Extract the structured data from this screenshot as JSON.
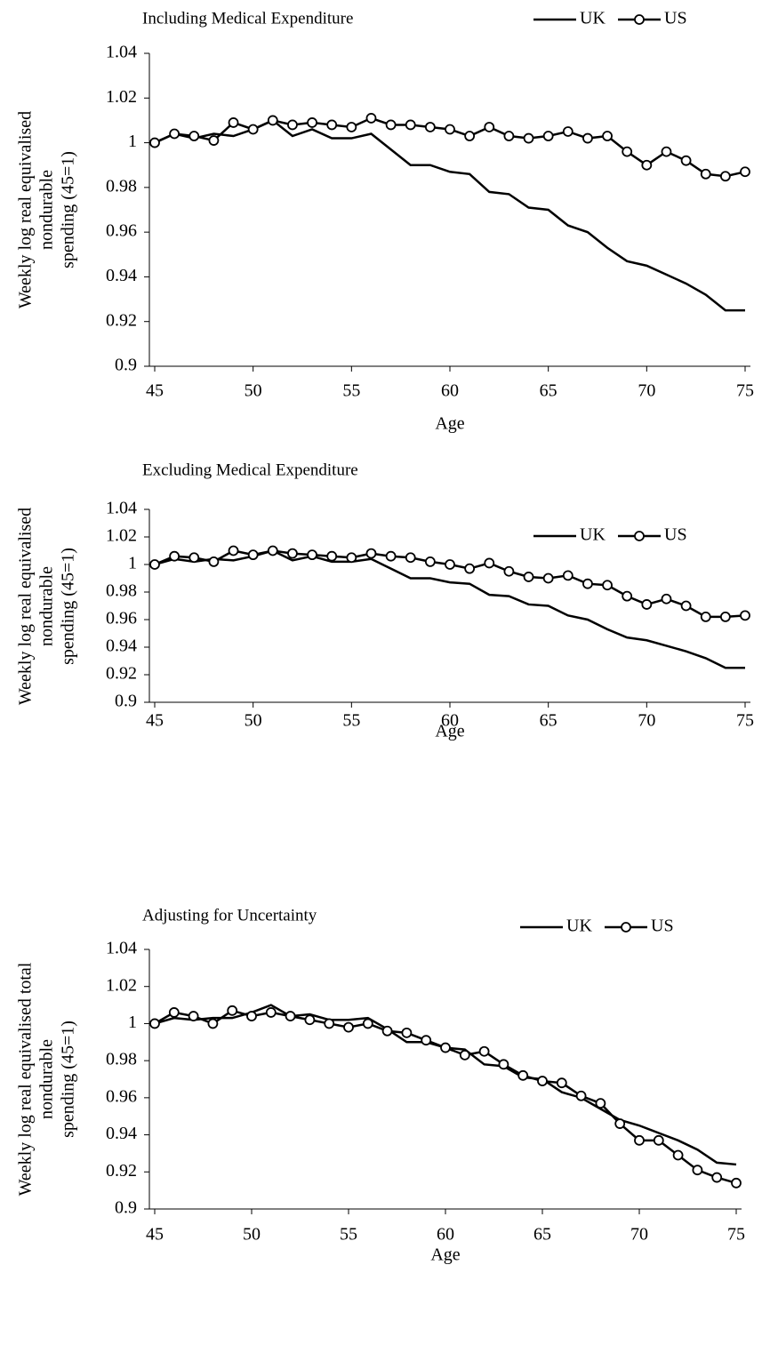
{
  "chart_data": [
    {
      "type": "line",
      "title": "Including Medical Expenditure",
      "ylabel": [
        "Weekly log real equivalised",
        "nondurable",
        "spending (45=1)"
      ],
      "xlabel": "Age",
      "x": [
        45,
        46,
        47,
        48,
        49,
        50,
        51,
        52,
        53,
        54,
        55,
        56,
        57,
        58,
        59,
        60,
        61,
        62,
        63,
        64,
        65,
        66,
        67,
        68,
        69,
        70,
        71,
        72,
        73,
        74,
        75
      ],
      "xlim": [
        45,
        75
      ],
      "xticks": [
        45,
        50,
        55,
        60,
        65,
        70,
        75
      ],
      "ylim": [
        0.9,
        1.04
      ],
      "yticks": [
        0.9,
        0.92,
        0.94,
        0.96,
        0.98,
        1,
        1.02,
        1.04
      ],
      "legend": "top-right",
      "series": [
        {
          "name": "UK",
          "color": "#000000",
          "marker": "none",
          "values": [
            1,
            1.004,
            1.002,
            1.004,
            1.003,
            1.006,
            1.01,
            1.003,
            1.006,
            1.002,
            1.002,
            1.004,
            0.997,
            0.99,
            0.99,
            0.987,
            0.986,
            0.978,
            0.977,
            0.971,
            0.97,
            0.963,
            0.96,
            0.953,
            0.947,
            0.945,
            0.941,
            0.937,
            0.932,
            0.925,
            0.925
          ]
        },
        {
          "name": "US",
          "color": "#000000",
          "marker": "circle",
          "values": [
            1,
            1.004,
            1.003,
            1.001,
            1.009,
            1.006,
            1.01,
            1.008,
            1.009,
            1.008,
            1.007,
            1.011,
            1.008,
            1.008,
            1.007,
            1.006,
            1.003,
            1.007,
            1.003,
            1.002,
            1.003,
            1.005,
            1.002,
            1.003,
            0.996,
            0.99,
            0.996,
            0.992,
            0.986,
            0.985,
            0.987
          ]
        }
      ]
    },
    {
      "type": "line",
      "title": "Excluding Medical Expenditure",
      "ylabel": [
        "Weekly log real equivalised",
        "nondurable",
        "spending  (45=1)"
      ],
      "xlabel": "Age",
      "x": [
        45,
        46,
        47,
        48,
        49,
        50,
        51,
        52,
        53,
        54,
        55,
        56,
        57,
        58,
        59,
        60,
        61,
        62,
        63,
        64,
        65,
        66,
        67,
        68,
        69,
        70,
        71,
        72,
        73,
        74,
        75
      ],
      "xlim": [
        45,
        75
      ],
      "xticks": [
        45,
        50,
        55,
        60,
        65,
        70,
        75
      ],
      "ylim": [
        0.9,
        1.04
      ],
      "yticks": [
        0.9,
        0.92,
        0.94,
        0.96,
        0.98,
        1,
        1.02,
        1.04
      ],
      "legend": "top-right",
      "series": [
        {
          "name": "UK",
          "color": "#000000",
          "marker": "none",
          "values": [
            1,
            1.004,
            1.002,
            1.004,
            1.003,
            1.006,
            1.01,
            1.003,
            1.006,
            1.002,
            1.002,
            1.004,
            0.997,
            0.99,
            0.99,
            0.987,
            0.986,
            0.978,
            0.977,
            0.971,
            0.97,
            0.963,
            0.96,
            0.953,
            0.947,
            0.945,
            0.941,
            0.937,
            0.932,
            0.925,
            0.925
          ]
        },
        {
          "name": "US",
          "color": "#000000",
          "marker": "circle",
          "values": [
            1,
            1.006,
            1.005,
            1.002,
            1.01,
            1.007,
            1.01,
            1.008,
            1.007,
            1.006,
            1.005,
            1.008,
            1.006,
            1.005,
            1.002,
            1.0,
            0.997,
            1.001,
            0.995,
            0.991,
            0.99,
            0.992,
            0.986,
            0.985,
            0.977,
            0.971,
            0.975,
            0.97,
            0.962,
            0.962,
            0.963
          ]
        }
      ]
    },
    {
      "type": "line",
      "title": "Adjusting for Uncertainty",
      "ylabel": [
        "Weekly log real equivalised total",
        "nondurable",
        "spending (45=1)"
      ],
      "xlabel": "Age",
      "x": [
        45,
        46,
        47,
        48,
        49,
        50,
        51,
        52,
        53,
        54,
        55,
        56,
        57,
        58,
        59,
        60,
        61,
        62,
        63,
        64,
        65,
        66,
        67,
        68,
        69,
        70,
        71,
        72,
        73,
        74,
        75
      ],
      "xlim": [
        45,
        75
      ],
      "xticks": [
        45,
        50,
        55,
        60,
        65,
        70,
        75
      ],
      "ylim": [
        0.9,
        1.04
      ],
      "yticks": [
        0.9,
        0.92,
        0.94,
        0.96,
        0.98,
        1,
        1.02,
        1.04
      ],
      "legend": "top-right",
      "series": [
        {
          "name": "UK",
          "color": "#000000",
          "marker": "none",
          "values": [
            1,
            1.003,
            1.002,
            1.003,
            1.003,
            1.006,
            1.01,
            1.004,
            1.005,
            1.002,
            1.002,
            1.003,
            0.997,
            0.99,
            0.99,
            0.987,
            0.986,
            0.978,
            0.977,
            0.971,
            0.97,
            0.963,
            0.96,
            0.954,
            0.948,
            0.945,
            0.941,
            0.937,
            0.932,
            0.925,
            0.924
          ]
        },
        {
          "name": "US",
          "color": "#000000",
          "marker": "circle",
          "values": [
            1,
            1.006,
            1.004,
            1.0,
            1.007,
            1.004,
            1.006,
            1.004,
            1.002,
            1.0,
            0.998,
            1.0,
            0.996,
            0.995,
            0.991,
            0.987,
            0.983,
            0.985,
            0.978,
            0.972,
            0.969,
            0.968,
            0.961,
            0.957,
            0.946,
            0.937,
            0.937,
            0.929,
            0.921,
            0.917,
            0.914
          ]
        }
      ]
    }
  ]
}
